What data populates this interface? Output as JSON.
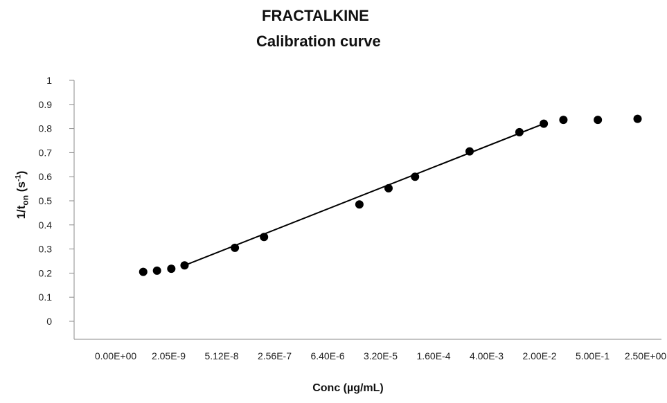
{
  "chart_data": {
    "type": "scatter",
    "title": "FRACTALKINE",
    "subtitle": "Calibration curve",
    "ylabel": {
      "main": "1/t",
      "sub": "on",
      "unit_open": " (s",
      "sup": "-1",
      "unit_close": ")"
    },
    "xlabel": "Conc (µg/mL)",
    "ylim": [
      0,
      1
    ],
    "yticks": [
      "0",
      "0.1",
      "0.2",
      "0.3",
      "0.4",
      "0.5",
      "0.6",
      "0.7",
      "0.8",
      "0.9",
      "1"
    ],
    "x_scale": "log",
    "xticks": [
      "0.00E+00",
      "2.05E-9",
      "5.12E-8",
      "2.56E-7",
      "6.40E-6",
      "3.20E-5",
      "1.60E-4",
      "4.00E-3",
      "2.00E-2",
      "5.00E-1",
      "2.50E+00"
    ],
    "grid": false,
    "series": [
      {
        "points": [
          {
            "x": 0.52,
            "y": 0.205
          },
          {
            "x": 0.78,
            "y": 0.21
          },
          {
            "x": 1.05,
            "y": 0.218
          },
          {
            "x": 1.3,
            "y": 0.232
          },
          {
            "x": 2.25,
            "y": 0.305
          },
          {
            "x": 2.8,
            "y": 0.35
          },
          {
            "x": 4.6,
            "y": 0.485
          },
          {
            "x": 5.15,
            "y": 0.552
          },
          {
            "x": 5.65,
            "y": 0.6
          },
          {
            "x": 6.68,
            "y": 0.705
          },
          {
            "x": 7.62,
            "y": 0.785
          },
          {
            "x": 8.08,
            "y": 0.82
          },
          {
            "x": 8.45,
            "y": 0.836
          },
          {
            "x": 9.1,
            "y": 0.836
          },
          {
            "x": 9.85,
            "y": 0.84
          }
        ]
      }
    ],
    "fit_line": {
      "x_start": 1.3,
      "x_end": 8.08,
      "y_start": 0.232,
      "y_end": 0.82
    }
  }
}
